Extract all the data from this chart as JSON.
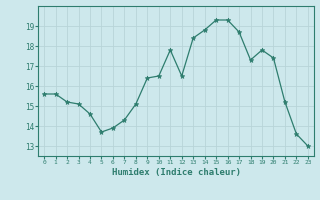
{
  "x": [
    0,
    1,
    2,
    3,
    4,
    5,
    6,
    7,
    8,
    9,
    10,
    11,
    12,
    13,
    14,
    15,
    16,
    17,
    18,
    19,
    20,
    21,
    22,
    23
  ],
  "y": [
    15.6,
    15.6,
    15.2,
    15.1,
    14.6,
    13.7,
    13.9,
    14.3,
    15.1,
    16.4,
    16.5,
    17.8,
    16.5,
    18.4,
    18.8,
    19.3,
    19.3,
    18.7,
    17.3,
    17.8,
    17.4,
    15.2,
    13.6,
    13.0
  ],
  "xlabel": "Humidex (Indice chaleur)",
  "ylim": [
    12.5,
    20.0
  ],
  "yticks": [
    13,
    14,
    15,
    16,
    17,
    18,
    19
  ],
  "xticks": [
    0,
    1,
    2,
    3,
    4,
    5,
    6,
    7,
    8,
    9,
    10,
    11,
    12,
    13,
    14,
    15,
    16,
    17,
    18,
    19,
    20,
    21,
    22,
    23
  ],
  "line_color": "#2e7d6e",
  "marker_color": "#2e7d6e",
  "bg_color": "#cde8ec",
  "grid_color": "#b8d4d8",
  "tick_color": "#2e7d6e",
  "label_color": "#2e7d6e",
  "spine_color": "#2e7d6e"
}
